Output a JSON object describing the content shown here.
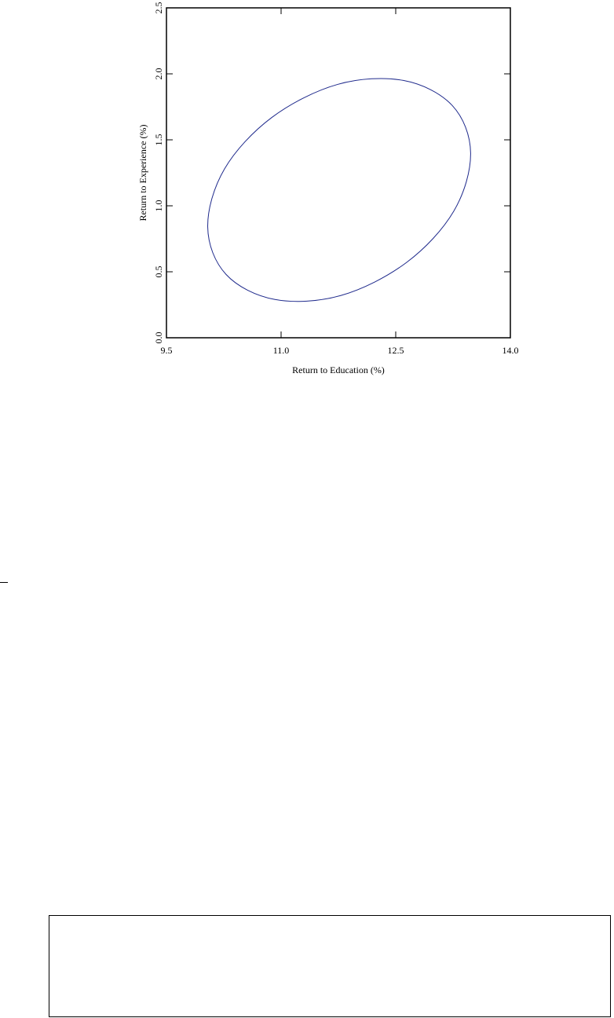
{
  "chart_data": {
    "type": "line",
    "xlabel": "Return to Education (%)",
    "ylabel": "Return to Experience (%)",
    "series": [
      {
        "color": "#1f2a8c",
        "x": [
          13.48,
          13.24,
          12.6,
          11.74,
          10.88,
          10.26,
          10.04,
          10.28,
          10.92,
          11.78,
          12.64,
          13.26,
          13.48
        ],
        "values": [
          1.4,
          1.76,
          1.95,
          1.92,
          1.67,
          1.28,
          0.84,
          0.48,
          0.29,
          0.32,
          0.57,
          0.96,
          1.4
        ]
      }
    ],
    "xlim": [
      9.5,
      14.0
    ],
    "xticks": [
      9.5,
      {
        "value": 11,
        "label": "11.0"
      },
      12.5,
      {
        "value": 14,
        "label": "14.0"
      }
    ],
    "ylim": [
      0,
      2.5
    ],
    "yticks": [
      {
        "value": 0,
        "label": "0.0"
      },
      0.5,
      {
        "value": 1,
        "label": "1.0"
      },
      1.5,
      {
        "value": 2,
        "label": "2.0"
      },
      2.5
    ],
    "grid": false
  }
}
